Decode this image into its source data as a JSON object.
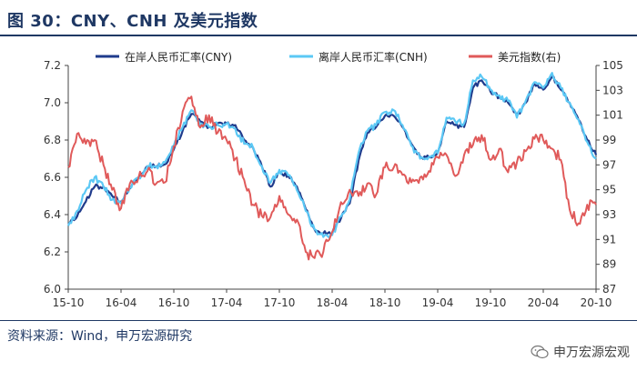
{
  "title": "图 30：CNY、CNH 及美元指数",
  "source": "资料来源：Wind，申万宏源研究",
  "brand": "申万宏源宏观",
  "colors": {
    "cny": "#1f3b8c",
    "cnh": "#5bc8f5",
    "dxy": "#e05a5a",
    "title": "#1f3864"
  },
  "chart_data": {
    "type": "line",
    "xlabel": "",
    "ylabel_left": "",
    "ylabel_right": "",
    "grid": false,
    "legend_position": "top",
    "x_ticks": [
      "15-10",
      "16-04",
      "16-10",
      "17-04",
      "17-10",
      "18-04",
      "18-10",
      "19-04",
      "19-10",
      "20-04",
      "20-10"
    ],
    "ylim_left": [
      6.0,
      7.2
    ],
    "yticks_left": [
      "6.0",
      "6.2",
      "6.4",
      "6.6",
      "6.8",
      "7.0",
      "7.2"
    ],
    "ylim_right": [
      87,
      105
    ],
    "yticks_right": [
      "87",
      "89",
      "91",
      "93",
      "95",
      "97",
      "99",
      "101",
      "103",
      "105"
    ],
    "x_months": [
      "2015-10",
      "2015-11",
      "2015-12",
      "2016-01",
      "2016-02",
      "2016-03",
      "2016-04",
      "2016-05",
      "2016-06",
      "2016-07",
      "2016-08",
      "2016-09",
      "2016-10",
      "2016-11",
      "2016-12",
      "2017-01",
      "2017-02",
      "2017-03",
      "2017-04",
      "2017-05",
      "2017-06",
      "2017-07",
      "2017-08",
      "2017-09",
      "2017-10",
      "2017-11",
      "2017-12",
      "2018-01",
      "2018-02",
      "2018-03",
      "2018-04",
      "2018-05",
      "2018-06",
      "2018-07",
      "2018-08",
      "2018-09",
      "2018-10",
      "2018-11",
      "2018-12",
      "2019-01",
      "2019-02",
      "2019-03",
      "2019-04",
      "2019-05",
      "2019-06",
      "2019-07",
      "2019-08",
      "2019-09",
      "2019-10",
      "2019-11",
      "2019-12",
      "2020-01",
      "2020-02",
      "2020-03",
      "2020-04",
      "2020-05",
      "2020-06",
      "2020-07",
      "2020-08",
      "2020-09",
      "2020-10"
    ],
    "series": [
      {
        "name": "在岸人民币汇率(CNY)",
        "axis": "left",
        "values": [
          6.35,
          6.39,
          6.47,
          6.55,
          6.55,
          6.5,
          6.47,
          6.54,
          6.6,
          6.66,
          6.66,
          6.67,
          6.75,
          6.85,
          6.94,
          6.9,
          6.87,
          6.89,
          6.89,
          6.88,
          6.8,
          6.76,
          6.66,
          6.55,
          6.63,
          6.61,
          6.55,
          6.43,
          6.32,
          6.3,
          6.3,
          6.38,
          6.46,
          6.69,
          6.84,
          6.87,
          6.93,
          6.93,
          6.87,
          6.78,
          6.71,
          6.71,
          6.73,
          6.9,
          6.88,
          6.87,
          7.08,
          7.12,
          7.06,
          7.03,
          7.0,
          6.93,
          7.0,
          7.1,
          7.07,
          7.14,
          7.07,
          7.0,
          6.91,
          6.8,
          6.72
        ]
      },
      {
        "name": "离岸人民币汇率(CNH)",
        "axis": "left",
        "values": [
          6.34,
          6.42,
          6.53,
          6.6,
          6.55,
          6.48,
          6.46,
          6.55,
          6.6,
          6.66,
          6.66,
          6.68,
          6.77,
          6.87,
          6.96,
          6.88,
          6.87,
          6.88,
          6.89,
          6.86,
          6.78,
          6.76,
          6.66,
          6.57,
          6.64,
          6.61,
          6.53,
          6.42,
          6.32,
          6.28,
          6.29,
          6.39,
          6.48,
          6.73,
          6.85,
          6.88,
          6.95,
          6.96,
          6.88,
          6.77,
          6.7,
          6.71,
          6.73,
          6.92,
          6.9,
          6.89,
          7.12,
          7.14,
          7.07,
          7.04,
          7.01,
          6.92,
          7.01,
          7.11,
          7.08,
          7.16,
          7.08,
          7.0,
          6.91,
          6.79,
          6.7
        ]
      },
      {
        "name": "美元指数(右)",
        "axis": "right",
        "values": [
          96.8,
          99.5,
          98.7,
          99.0,
          97.0,
          95.0,
          93.5,
          95.5,
          96.0,
          96.5,
          95.5,
          95.6,
          98.5,
          101.3,
          102.5,
          100.0,
          101.0,
          99.6,
          99.0,
          97.5,
          95.8,
          93.8,
          92.9,
          92.8,
          94.5,
          93.0,
          92.6,
          90.0,
          89.5,
          90.0,
          91.6,
          94.0,
          95.0,
          94.5,
          95.5,
          94.6,
          96.8,
          96.8,
          96.2,
          95.6,
          96.0,
          96.5,
          97.6,
          97.8,
          96.1,
          97.8,
          98.6,
          99.4,
          97.4,
          98.3,
          96.4,
          97.2,
          98.1,
          99.1,
          99.0,
          98.3,
          97.4,
          93.4,
          92.3,
          93.8,
          93.8
        ]
      }
    ]
  }
}
